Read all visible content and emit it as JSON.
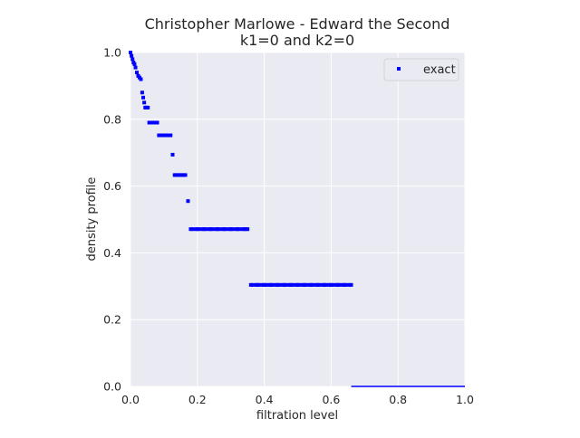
{
  "chart_data": {
    "type": "scatter",
    "title_line1": "Christopher Marlowe - Edward the Second",
    "title_line2": "k1=0 and k2=0",
    "xlabel": "filtration level",
    "ylabel": "density profile",
    "xlim": [
      0,
      1
    ],
    "ylim": [
      0,
      1
    ],
    "grid": true,
    "legend_position": "top-right",
    "xticks": [
      "0.0",
      "0.2",
      "0.4",
      "0.6",
      "0.8",
      "1.0"
    ],
    "yticks": [
      "0.0",
      "0.2",
      "0.4",
      "0.6",
      "0.8",
      "1.0"
    ],
    "series": [
      {
        "name": "exact",
        "color": "#0000ff",
        "marker": "square",
        "points": [
          [
            0.0,
            1.0
          ],
          [
            0.003,
            0.99
          ],
          [
            0.006,
            0.98
          ],
          [
            0.009,
            0.97
          ],
          [
            0.012,
            0.965
          ],
          [
            0.015,
            0.955
          ],
          [
            0.019,
            0.94
          ],
          [
            0.023,
            0.93
          ],
          [
            0.027,
            0.925
          ],
          [
            0.031,
            0.92
          ],
          [
            0.035,
            0.88
          ],
          [
            0.038,
            0.865
          ],
          [
            0.041,
            0.85
          ],
          [
            0.044,
            0.835
          ],
          [
            0.048,
            0.835
          ],
          [
            0.052,
            0.835
          ],
          [
            0.056,
            0.79
          ],
          [
            0.06,
            0.79
          ],
          [
            0.065,
            0.79
          ],
          [
            0.07,
            0.79
          ],
          [
            0.075,
            0.79
          ],
          [
            0.08,
            0.79
          ],
          [
            0.085,
            0.752
          ],
          [
            0.09,
            0.752
          ],
          [
            0.095,
            0.752
          ],
          [
            0.1,
            0.752
          ],
          [
            0.105,
            0.752
          ],
          [
            0.11,
            0.752
          ],
          [
            0.115,
            0.752
          ],
          [
            0.12,
            0.752
          ],
          [
            0.126,
            0.694
          ],
          [
            0.132,
            0.633
          ],
          [
            0.14,
            0.633
          ],
          [
            0.148,
            0.633
          ],
          [
            0.156,
            0.633
          ],
          [
            0.164,
            0.633
          ],
          [
            0.172,
            0.555
          ],
          [
            0.18,
            0.471
          ],
          [
            0.2,
            0.471
          ],
          [
            0.22,
            0.471
          ],
          [
            0.24,
            0.471
          ],
          [
            0.26,
            0.471
          ],
          [
            0.28,
            0.471
          ],
          [
            0.3,
            0.471
          ],
          [
            0.32,
            0.471
          ],
          [
            0.34,
            0.471
          ],
          [
            0.35,
            0.471
          ],
          [
            0.36,
            0.304
          ],
          [
            0.38,
            0.304
          ],
          [
            0.4,
            0.304
          ],
          [
            0.42,
            0.304
          ],
          [
            0.44,
            0.304
          ],
          [
            0.46,
            0.304
          ],
          [
            0.48,
            0.304
          ],
          [
            0.5,
            0.304
          ],
          [
            0.52,
            0.304
          ],
          [
            0.54,
            0.304
          ],
          [
            0.56,
            0.304
          ],
          [
            0.58,
            0.304
          ],
          [
            0.6,
            0.304
          ],
          [
            0.62,
            0.304
          ],
          [
            0.64,
            0.304
          ],
          [
            0.66,
            0.304
          ]
        ],
        "line_segment": {
          "x": [
            0.66,
            1.0
          ],
          "y": [
            0.0,
            0.0
          ]
        }
      }
    ]
  }
}
